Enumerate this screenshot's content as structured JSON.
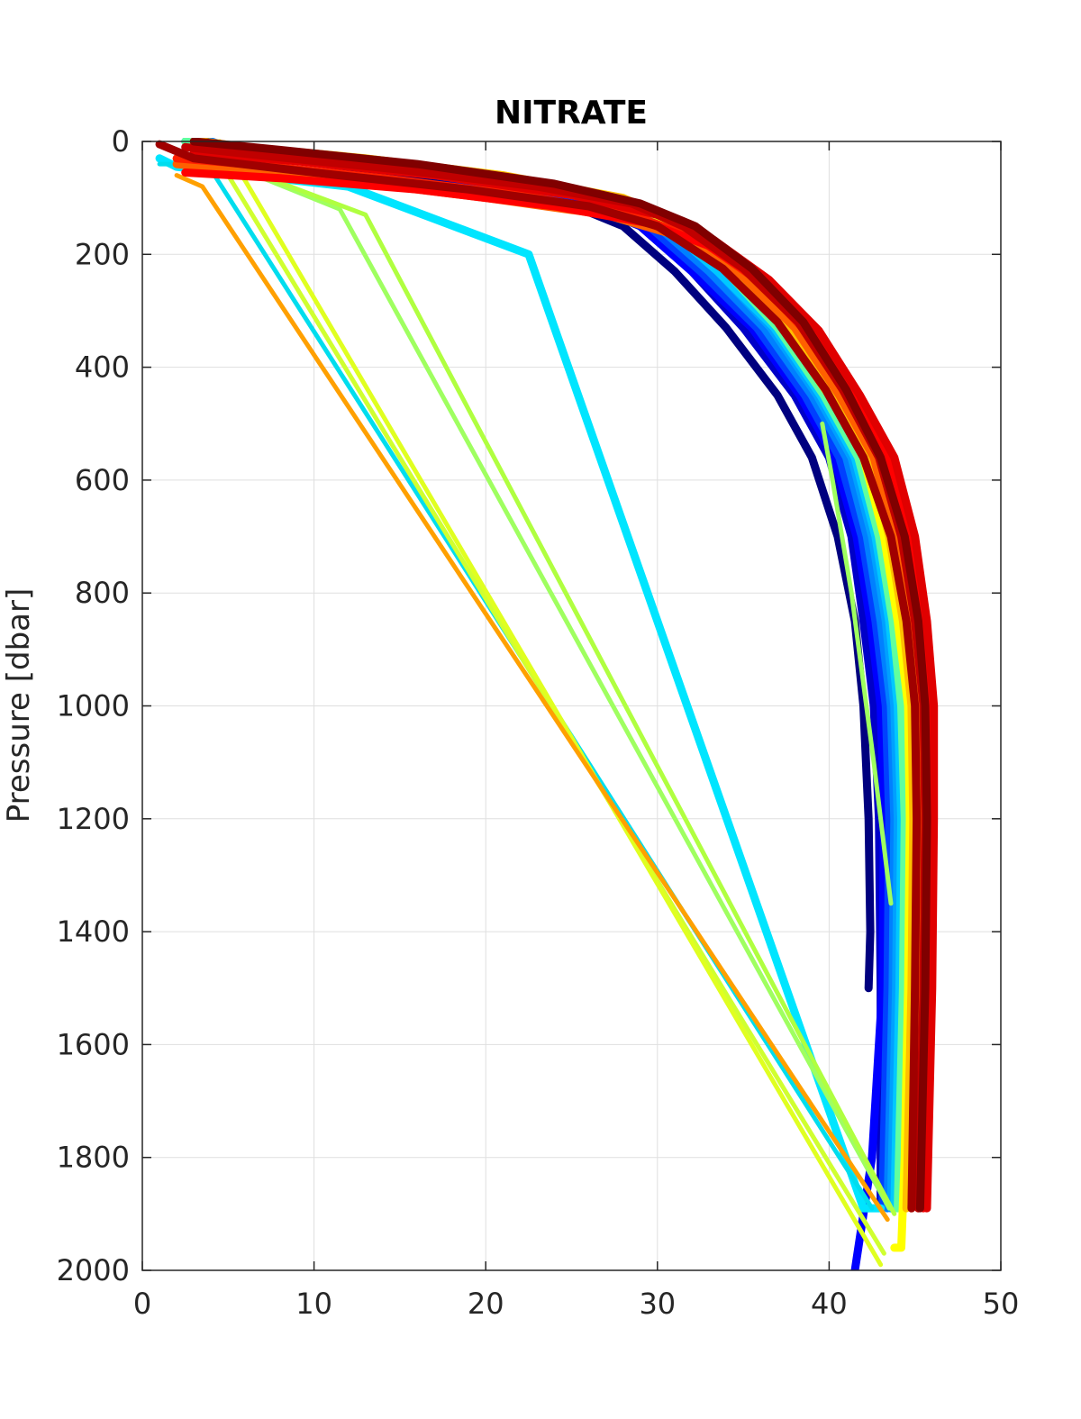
{
  "chart_data": {
    "type": "line",
    "title": "NITRATE",
    "xlabel": "",
    "ylabel": "Pressure [dbar]",
    "xlim": [
      0,
      50
    ],
    "ylim": [
      0,
      2000
    ],
    "y_reversed": true,
    "grid": true,
    "legend": "none",
    "x_ticks": [
      0,
      10,
      20,
      30,
      40,
      50
    ],
    "y_ticks": [
      0,
      200,
      400,
      600,
      800,
      1000,
      1200,
      1400,
      1600,
      1800,
      2000
    ],
    "colormap": "jet",
    "series": [
      {
        "color": "#00007F",
        "x": [
          3.5,
          4,
          8,
          16,
          24,
          28,
          31,
          34,
          37,
          39,
          40.5,
          41.5,
          42,
          42.3,
          42.4,
          42.3
        ],
        "y": [
          0,
          10,
          30,
          60,
          100,
          150,
          230,
          330,
          450,
          560,
          700,
          850,
          1000,
          1200,
          1400,
          1500
        ]
      },
      {
        "color": "#0000C8",
        "x": [
          3.8,
          4.5,
          9,
          17,
          25,
          29,
          32,
          35,
          38,
          40,
          41.3,
          42,
          42.6,
          42.9,
          43,
          43
        ],
        "y": [
          0,
          10,
          30,
          60,
          100,
          150,
          230,
          330,
          450,
          560,
          700,
          850,
          1000,
          1200,
          1500,
          1890
        ]
      },
      {
        "color": "#0000FF",
        "x": [
          4,
          5,
          10,
          18,
          25.5,
          29,
          32,
          35.5,
          38.3,
          40.3,
          41.6,
          42.4,
          43,
          43.2,
          43.1,
          42.5,
          41.5
        ],
        "y": [
          0,
          10,
          30,
          60,
          100,
          150,
          230,
          330,
          450,
          560,
          700,
          850,
          1000,
          1200,
          1500,
          1800,
          2000
        ]
      },
      {
        "color": "#0040FF",
        "x": [
          3,
          4,
          9,
          17,
          26,
          29.5,
          32.5,
          35.8,
          38.6,
          40.6,
          41.9,
          42.7,
          43.3,
          43.5,
          43.4,
          43.1
        ],
        "y": [
          0,
          10,
          30,
          60,
          100,
          150,
          230,
          330,
          450,
          560,
          700,
          850,
          1000,
          1200,
          1500,
          1890
        ]
      },
      {
        "color": "#0080FF",
        "x": [
          4,
          5,
          11,
          19,
          26.5,
          30,
          33,
          36.2,
          39,
          41,
          42.2,
          43,
          43.6,
          43.8,
          43.7,
          43.4
        ],
        "y": [
          0,
          10,
          30,
          60,
          100,
          150,
          230,
          330,
          450,
          560,
          700,
          850,
          1000,
          1200,
          1500,
          1890
        ]
      },
      {
        "color": "#00A0FF",
        "x": [
          2.5,
          4,
          10,
          19,
          26.5,
          30.5,
          33.5,
          36.6,
          39.3,
          41.3,
          42.5,
          43.3,
          43.8,
          44,
          43.9,
          43.6
        ],
        "y": [
          0,
          10,
          30,
          60,
          100,
          150,
          230,
          330,
          450,
          560,
          700,
          850,
          1000,
          1200,
          1500,
          1890
        ]
      },
      {
        "color": "#00C8FF",
        "x": [
          3,
          4.5,
          10,
          18,
          26,
          30.5,
          33.5,
          36.8,
          39.5,
          41.5,
          42.7,
          43.5,
          44,
          44.2,
          44.1,
          43.8
        ],
        "y": [
          0,
          10,
          30,
          60,
          100,
          150,
          230,
          330,
          450,
          560,
          700,
          850,
          1000,
          1200,
          1500,
          1890
        ]
      },
      {
        "color": "#00E5FF",
        "x": [
          1,
          2,
          12,
          22.5,
          42,
          42.5,
          43
        ],
        "y": [
          30,
          45,
          80,
          200,
          1890,
          1890,
          1890
        ]
      },
      {
        "color": "#00DDEE",
        "x": [
          1,
          2,
          4,
          42.5
        ],
        "y": [
          40,
          40,
          50,
          1890
        ]
      },
      {
        "color": "#60FF9F",
        "x": [
          2.5,
          5,
          12,
          20,
          27,
          31,
          34,
          37,
          39.7,
          41.7,
          42.9,
          43.7,
          44.2,
          44.4,
          44.3,
          44
        ],
        "y": [
          0,
          10,
          30,
          60,
          100,
          150,
          230,
          330,
          450,
          560,
          700,
          850,
          1000,
          1200,
          1500,
          1890
        ]
      },
      {
        "color": "#9FFF60",
        "x": [
          39.6,
          40.2,
          41.3,
          42.6,
          43.6
        ],
        "y": [
          500,
          600,
          800,
          1100,
          1350
        ]
      },
      {
        "color": "#9FFF60",
        "x": [
          3.5,
          5,
          11.5,
          43.5
        ],
        "y": [
          0,
          40,
          120,
          1890
        ]
      },
      {
        "color": "#B0FF40",
        "x": [
          4,
          6,
          13,
          43.8
        ],
        "y": [
          0,
          50,
          130,
          1900
        ]
      },
      {
        "color": "#D0FF30",
        "x": [
          3,
          5,
          43.2
        ],
        "y": [
          0,
          60,
          1970
        ]
      },
      {
        "color": "#E0FF20",
        "x": [
          4.5,
          6,
          43
        ],
        "y": [
          0,
          70,
          1990
        ]
      },
      {
        "color": "#FFFF00",
        "x": [
          3,
          6,
          13,
          21,
          27.5,
          31.5,
          34.5,
          37.3,
          40,
          42,
          43.2,
          44,
          44.6,
          44.7,
          44.6,
          44.4,
          44.2,
          43.8
        ],
        "y": [
          0,
          10,
          30,
          60,
          100,
          150,
          230,
          330,
          450,
          560,
          700,
          850,
          1000,
          1200,
          1500,
          1800,
          1960,
          1960
        ]
      },
      {
        "color": "#FFBF00",
        "x": [
          3.5,
          6,
          13,
          21,
          28,
          31.8,
          34.8,
          37.6,
          40.3,
          42.3,
          43.5,
          44.3,
          44.8,
          44.9,
          44.8,
          44.5
        ],
        "y": [
          0,
          10,
          30,
          60,
          100,
          150,
          230,
          330,
          450,
          560,
          700,
          850,
          1000,
          1200,
          1500,
          1890
        ]
      },
      {
        "color": "#FFA000",
        "x": [
          2,
          3.5,
          43.4
        ],
        "y": [
          60,
          80,
          1910
        ]
      },
      {
        "color": "#FF6000",
        "x": [
          2,
          5,
          12,
          20,
          27,
          31.5,
          35,
          38,
          40.6,
          42.6,
          43.8,
          44.6,
          45.1,
          45.2,
          45.1,
          44.8
        ],
        "y": [
          40,
          50,
          70,
          100,
          130,
          170,
          240,
          330,
          450,
          560,
          700,
          850,
          1000,
          1200,
          1500,
          1890
        ]
      },
      {
        "color": "#FF2000",
        "x": [
          2,
          6,
          14,
          22,
          28.5,
          32.5,
          35.8,
          38.6,
          41,
          43,
          44.3,
          45,
          45.5,
          45.6,
          45.5,
          45.2
        ],
        "y": [
          30,
          40,
          65,
          95,
          130,
          175,
          245,
          335,
          450,
          560,
          700,
          850,
          1000,
          1200,
          1500,
          1890
        ]
      },
      {
        "color": "#FF0000",
        "x": [
          2.5,
          8,
          16,
          24,
          29.5,
          33,
          36.2,
          39,
          41.4,
          43.4,
          44.7,
          45.4,
          45.8,
          45.9,
          45.8,
          45.5
        ],
        "y": [
          55,
          65,
          85,
          115,
          145,
          185,
          250,
          335,
          450,
          560,
          700,
          850,
          1000,
          1200,
          1500,
          1890
        ]
      },
      {
        "color": "#E00000",
        "x": [
          3,
          9,
          17,
          25,
          30,
          33.3,
          36.5,
          39.4,
          41.8,
          43.8,
          45,
          45.7,
          46.1,
          46.1,
          46,
          45.7
        ],
        "y": [
          20,
          35,
          60,
          95,
          130,
          175,
          245,
          335,
          450,
          560,
          700,
          850,
          1000,
          1200,
          1500,
          1890
        ]
      },
      {
        "color": "#C00000",
        "x": [
          2.5,
          7,
          15,
          23,
          28.5,
          31.5,
          35,
          38.2,
          40.8,
          42.9,
          44.2,
          45,
          45.5,
          45.6,
          45.5,
          45.2
        ],
        "y": [
          10,
          25,
          50,
          80,
          110,
          150,
          225,
          320,
          440,
          560,
          700,
          850,
          1000,
          1200,
          1500,
          1890
        ]
      },
      {
        "color": "#A00000",
        "x": [
          1,
          3,
          10,
          19,
          26,
          30,
          33.8,
          37,
          39.8,
          42,
          43.6,
          44.5,
          45,
          45.1,
          45,
          44.8
        ],
        "y": [
          5,
          30,
          55,
          85,
          115,
          150,
          225,
          320,
          440,
          560,
          700,
          850,
          1000,
          1200,
          1500,
          1890
        ]
      },
      {
        "color": "#800000",
        "x": [
          3,
          8,
          16,
          24,
          29,
          32.2,
          35.5,
          38.5,
          41,
          43,
          44.4,
          45.2,
          45.6,
          45.7,
          45.6,
          45.3
        ],
        "y": [
          0,
          15,
          40,
          75,
          110,
          150,
          225,
          320,
          440,
          560,
          700,
          850,
          1000,
          1200,
          1500,
          1890
        ]
      }
    ]
  }
}
